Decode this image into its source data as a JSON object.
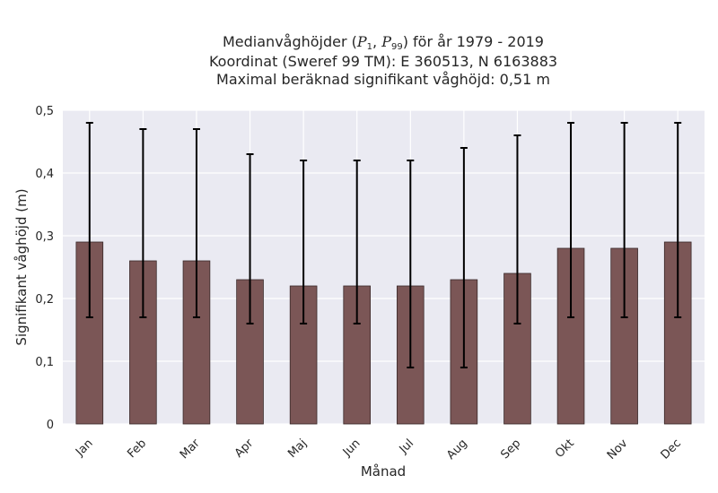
{
  "chart_data": {
    "type": "bar",
    "title_lines": [
      "Medianvåghöjder (P1, P99) för år 1979 - 2019",
      "Koordinat (Sweref 99 TM): E 360513, N 6163883",
      "Maximal beräknad signifikant våghöjd: 0,51 m"
    ],
    "xlabel": "Månad",
    "ylabel": "Signifikant våghöjd (m)",
    "categories": [
      "Jan",
      "Feb",
      "Mar",
      "Apr",
      "Maj",
      "Jun",
      "Jul",
      "Aug",
      "Sep",
      "Okt",
      "Nov",
      "Dec"
    ],
    "values": [
      0.29,
      0.26,
      0.26,
      0.23,
      0.22,
      0.22,
      0.22,
      0.23,
      0.24,
      0.28,
      0.28,
      0.29
    ],
    "error_low": [
      0.17,
      0.17,
      0.17,
      0.16,
      0.16,
      0.16,
      0.09,
      0.09,
      0.16,
      0.17,
      0.17,
      0.17
    ],
    "error_high": [
      0.48,
      0.47,
      0.47,
      0.43,
      0.42,
      0.42,
      0.42,
      0.44,
      0.46,
      0.48,
      0.48,
      0.48
    ],
    "ylim": [
      0,
      0.5
    ],
    "yticks": [
      "0",
      "0,1",
      "0,2",
      "0,3",
      "0,4",
      "0,5"
    ],
    "grid": true,
    "colors": {
      "bar": "#7b5656",
      "bar_edge": "#3a2a2a",
      "errorbar": "#000000",
      "plot_background": "#eaeaf2",
      "grid": "#ffffff"
    }
  }
}
